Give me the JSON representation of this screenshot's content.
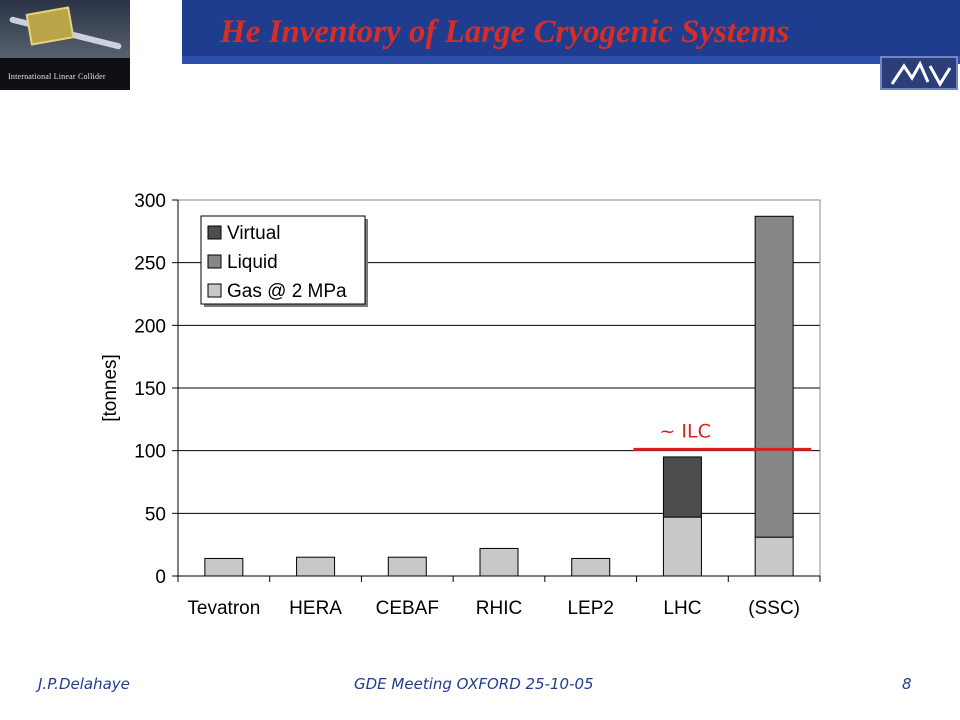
{
  "slide": {
    "title": "He Inventory of Large Cryogenic Systems",
    "logo_left_caption": "International Linear Collider",
    "footer": {
      "author": "J.P.Delahaye",
      "meeting": "GDE Meeting OXFORD 25-10-05",
      "page": "8"
    }
  },
  "colors": {
    "title_bar": "#1f3d8f",
    "title_text": "#d62e26",
    "virtual": "#4d4d4d",
    "liquid": "#878787",
    "gas": "#c8c8c8",
    "ilc_line": "#d92020"
  },
  "chart_data": {
    "type": "bar",
    "stacked": true,
    "categories": [
      "Tevatron",
      "HERA",
      "CEBAF",
      "RHIC",
      "LEP2",
      "LHC",
      "(SSC)"
    ],
    "series": [
      {
        "name": "Gas @ 2 MPa",
        "values": [
          14,
          15,
          15,
          22,
          14,
          47,
          31
        ]
      },
      {
        "name": "Liquid",
        "values": [
          0,
          0,
          0,
          0,
          0,
          0,
          256
        ]
      },
      {
        "name": "Virtual",
        "values": [
          0,
          0,
          0,
          0,
          0,
          48,
          0
        ]
      }
    ],
    "legend_order": [
      "Virtual",
      "Liquid",
      "Gas @ 2 MPa"
    ],
    "legend_position": "top-left",
    "ylabel": "[tonnes]",
    "xlabel": "",
    "ylim": [
      0,
      300
    ],
    "yticks": [
      0,
      50,
      100,
      150,
      200,
      250,
      300
    ],
    "grid": "horizontal",
    "annotation": {
      "label": "~ ILC",
      "y": 101,
      "from_category": "LHC",
      "to_category": "(SSC)"
    }
  }
}
